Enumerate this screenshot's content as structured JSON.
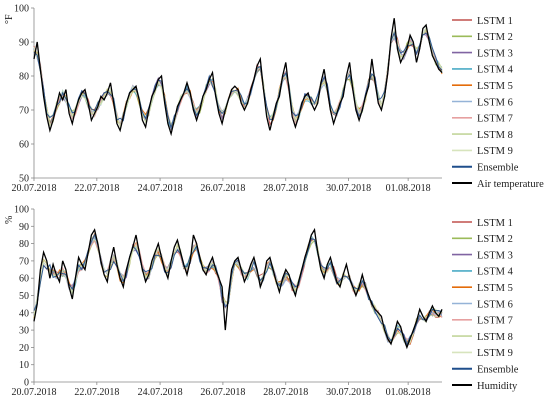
{
  "chart_data": [
    {
      "type": "line",
      "ylabel": "°F",
      "ylim": [
        50,
        100
      ],
      "yticks": [
        "50",
        "60",
        "70",
        "80",
        "90",
        "100"
      ],
      "xtick_labels": [
        "20.07.2018",
        "22.07.2018",
        "24.07.2018",
        "26.07.2018",
        "28.07.2018",
        "30.07.2018",
        "01.08.2018"
      ],
      "legend_position": "right",
      "grid": false,
      "observed": {
        "name": "Air temperature",
        "color": "#000000",
        "values": [
          85,
          90,
          82,
          74,
          68,
          64,
          67,
          71,
          75,
          73,
          76,
          69,
          66,
          70,
          73,
          75,
          76,
          72,
          67,
          69,
          71,
          74,
          73,
          75,
          78,
          72,
          66,
          64,
          68,
          72,
          75,
          76,
          77,
          73,
          67,
          65,
          70,
          74,
          76,
          79,
          80,
          72,
          66,
          63,
          67,
          71,
          73,
          75,
          78,
          75,
          70,
          67,
          70,
          74,
          76,
          79,
          81,
          74,
          69,
          66,
          70,
          73,
          76,
          77,
          76,
          72,
          70,
          72,
          76,
          79,
          83,
          85,
          76,
          68,
          64,
          68,
          72,
          74,
          80,
          84,
          76,
          68,
          65,
          68,
          72,
          74,
          75,
          72,
          70,
          72,
          78,
          82,
          76,
          70,
          66,
          69,
          72,
          74,
          80,
          84,
          76,
          70,
          67,
          70,
          74,
          77,
          85,
          78,
          72,
          70,
          74,
          81,
          91,
          97,
          88,
          84,
          86,
          88,
          92,
          90,
          84,
          88,
          94,
          95,
          90,
          86,
          84,
          82,
          81
        ]
      },
      "series": [
        {
          "name": "LSTM 1",
          "color": "#c0504d"
        },
        {
          "name": "LSTM 2",
          "color": "#9bbb59"
        },
        {
          "name": "LSTM 3",
          "color": "#8064a2"
        },
        {
          "name": "LSTM 4",
          "color": "#4bacc6"
        },
        {
          "name": "LSTM 5",
          "color": "#e46c0a"
        },
        {
          "name": "LSTM 6",
          "color": "#95b3d7"
        },
        {
          "name": "LSTM 7",
          "color": "#e6a0a0"
        },
        {
          "name": "LSTM 8",
          "color": "#c3d69b"
        },
        {
          "name": "LSTM 9",
          "color": "#d7e4bd"
        },
        {
          "name": "Ensemble",
          "color": "#1f4e8c"
        }
      ]
    },
    {
      "type": "line",
      "ylabel": "%",
      "ylim": [
        0,
        100
      ],
      "yticks": [
        "0",
        "10",
        "20",
        "30",
        "40",
        "50",
        "60",
        "70",
        "80",
        "90",
        "100"
      ],
      "xtick_labels": [
        "20.07.2018",
        "22.07.2018",
        "24.07.2018",
        "26.07.2018",
        "28.07.2018",
        "30.07.2018",
        "01.08.2018"
      ],
      "legend_position": "right",
      "grid": false,
      "observed": {
        "name": "Humidity",
        "color": "#000000",
        "values": [
          35,
          45,
          65,
          75,
          70,
          60,
          68,
          62,
          58,
          70,
          65,
          55,
          48,
          60,
          72,
          68,
          65,
          75,
          85,
          88,
          80,
          70,
          62,
          58,
          70,
          78,
          68,
          60,
          55,
          65,
          72,
          78,
          85,
          75,
          65,
          58,
          62,
          70,
          75,
          80,
          72,
          65,
          60,
          70,
          78,
          82,
          75,
          68,
          62,
          70,
          85,
          80,
          72,
          65,
          62,
          68,
          72,
          65,
          60,
          55,
          30,
          50,
          65,
          70,
          72,
          65,
          58,
          62,
          68,
          72,
          65,
          55,
          60,
          70,
          72,
          65,
          58,
          52,
          60,
          65,
          62,
          55,
          50,
          58,
          65,
          72,
          78,
          85,
          88,
          75,
          65,
          60,
          68,
          72,
          65,
          58,
          55,
          62,
          68,
          60,
          55,
          50,
          55,
          62,
          55,
          50,
          45,
          42,
          40,
          38,
          30,
          25,
          22,
          28,
          35,
          32,
          25,
          20,
          25,
          30,
          35,
          42,
          38,
          35,
          40,
          44,
          40,
          38,
          42
        ]
      },
      "series": [
        {
          "name": "LSTM 1",
          "color": "#c0504d"
        },
        {
          "name": "LSTM 2",
          "color": "#9bbb59"
        },
        {
          "name": "LSTM 3",
          "color": "#8064a2"
        },
        {
          "name": "LSTM 4",
          "color": "#4bacc6"
        },
        {
          "name": "LSTM 5",
          "color": "#e46c0a"
        },
        {
          "name": "LSTM 6",
          "color": "#95b3d7"
        },
        {
          "name": "LSTM 7",
          "color": "#e6a0a0"
        },
        {
          "name": "LSTM 8",
          "color": "#c3d69b"
        },
        {
          "name": "LSTM 9",
          "color": "#d7e4bd"
        },
        {
          "name": "Ensemble",
          "color": "#1f4e8c"
        }
      ]
    }
  ]
}
